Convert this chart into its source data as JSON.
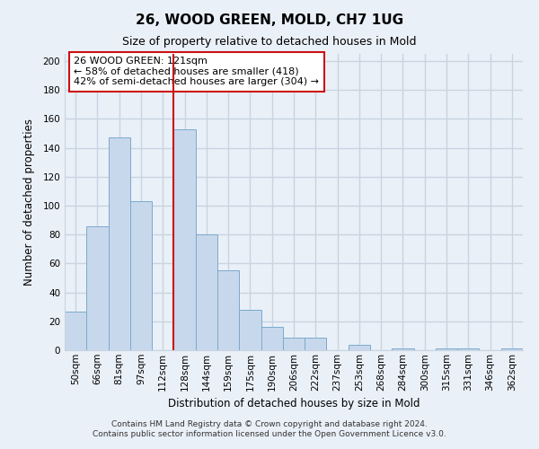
{
  "title": "26, WOOD GREEN, MOLD, CH7 1UG",
  "subtitle": "Size of property relative to detached houses in Mold",
  "xlabel": "Distribution of detached houses by size in Mold",
  "ylabel": "Number of detached properties",
  "bar_labels": [
    "50sqm",
    "66sqm",
    "81sqm",
    "97sqm",
    "112sqm",
    "128sqm",
    "144sqm",
    "159sqm",
    "175sqm",
    "190sqm",
    "206sqm",
    "222sqm",
    "237sqm",
    "253sqm",
    "268sqm",
    "284sqm",
    "300sqm",
    "315sqm",
    "331sqm",
    "346sqm",
    "362sqm"
  ],
  "bar_values": [
    27,
    86,
    147,
    103,
    0,
    153,
    80,
    55,
    28,
    16,
    9,
    9,
    0,
    4,
    0,
    1,
    0,
    1,
    1,
    0,
    1
  ],
  "bar_color": "#c8d8ec",
  "bar_edge_color": "#7aaacc",
  "vline_x_index": 4.5,
  "vline_color": "#cc1111",
  "ylim": [
    0,
    205
  ],
  "yticks": [
    0,
    20,
    40,
    60,
    80,
    100,
    120,
    140,
    160,
    180,
    200
  ],
  "annotation_title": "26 WOOD GREEN: 121sqm",
  "annotation_line1": "← 58% of detached houses are smaller (418)",
  "annotation_line2": "42% of semi-detached houses are larger (304) →",
  "annotation_box_facecolor": "#ffffff",
  "annotation_box_edgecolor": "#cc1111",
  "footer1": "Contains HM Land Registry data © Crown copyright and database right 2024.",
  "footer2": "Contains public sector information licensed under the Open Government Licence v3.0.",
  "bg_color": "#eaf0f8",
  "grid_color": "#c8d4e0",
  "title_fontsize": 11,
  "subtitle_fontsize": 9,
  "axis_label_fontsize": 8.5,
  "tick_fontsize": 7.5
}
